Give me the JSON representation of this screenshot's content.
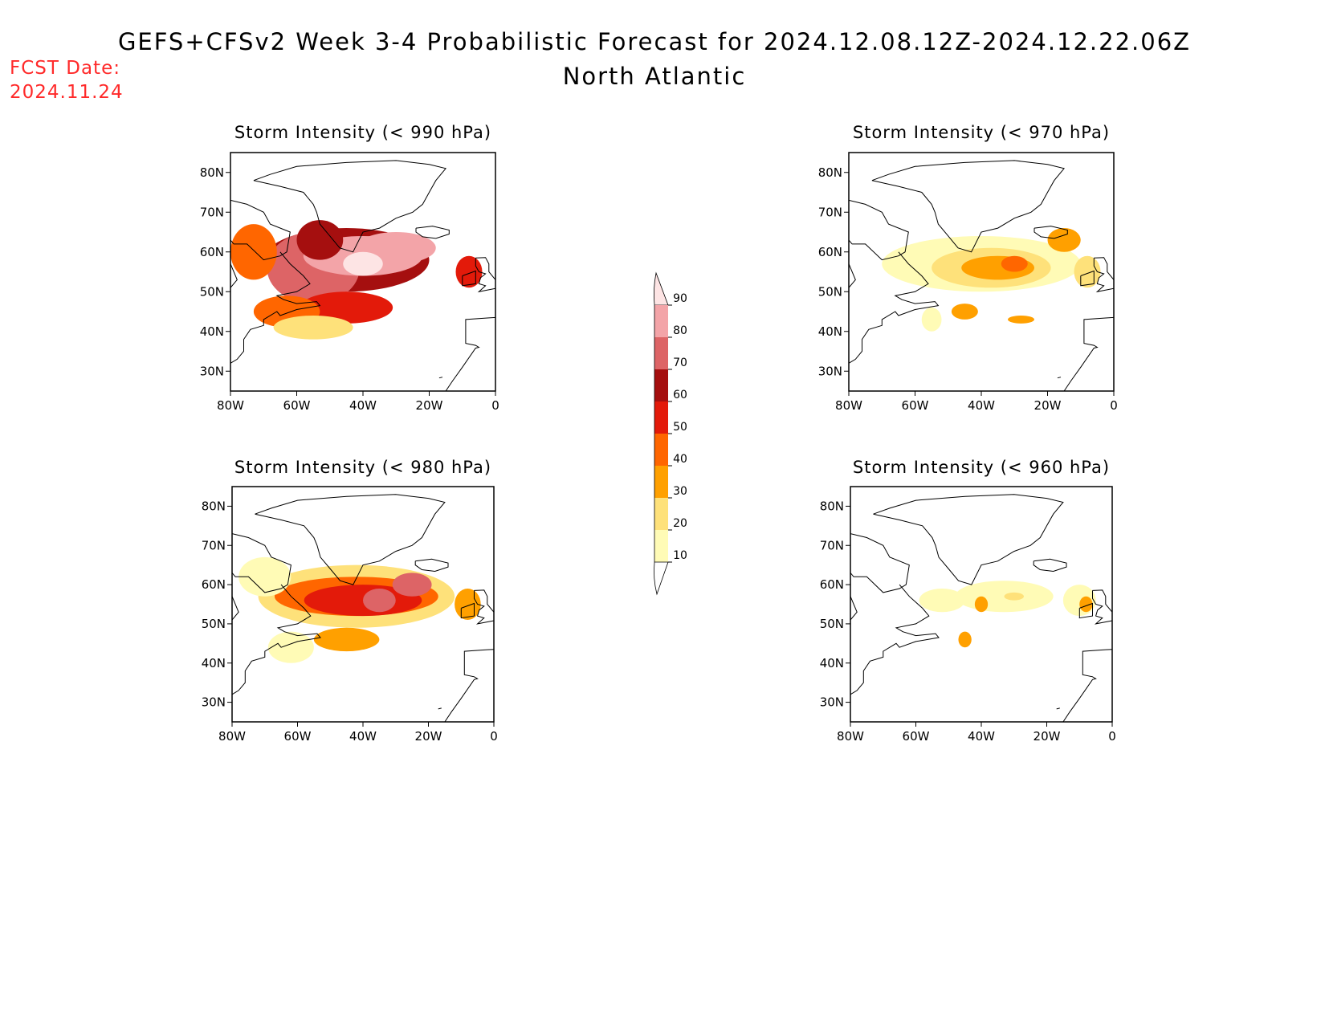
{
  "header": {
    "title": "GEFS+CFSv2 Week 3-4 Probabilistic Forecast for 2024.12.08.12Z-2024.12.22.06Z",
    "subtitle": "North Atlantic",
    "fcst_label": "FCST Date:",
    "fcst_date": "2024.11.24"
  },
  "axes": {
    "lat_labels": [
      "80N",
      "70N",
      "60N",
      "50N",
      "40N",
      "30N"
    ],
    "lat_values": [
      80,
      70,
      60,
      50,
      40,
      30
    ],
    "lon_labels": [
      "80W",
      "60W",
      "40W",
      "20W",
      "0"
    ],
    "lon_values": [
      -80,
      -60,
      -40,
      -20,
      0
    ],
    "lat_range": [
      25,
      85
    ],
    "lon_range": [
      -80,
      0
    ]
  },
  "colorbar": {
    "levels": [
      "90",
      "80",
      "70",
      "60",
      "50",
      "40",
      "30",
      "20",
      "10"
    ],
    "colors": [
      "#fde4e4",
      "#f3a4a8",
      "#dd6466",
      "#a50f0f",
      "#e31a0a",
      "#ff6600",
      "#ffa000",
      "#fee17a",
      "#fffbb6"
    ]
  },
  "panels": [
    {
      "id": "p990",
      "title": "Storm Intensity (< 990 hPa)",
      "blobs": [
        {
          "lon": -45,
          "lat": 58,
          "rx": 25,
          "ry": 8,
          "level": 5
        },
        {
          "lon": -55,
          "lat": 56,
          "rx": 14,
          "ry": 9,
          "level": 6
        },
        {
          "lon": -45,
          "lat": 46,
          "rx": 14,
          "ry": 4,
          "level": 4
        },
        {
          "lon": -63,
          "lat": 45,
          "rx": 10,
          "ry": 4,
          "level": 3
        },
        {
          "lon": -73,
          "lat": 60,
          "rx": 7,
          "ry": 7,
          "level": 3
        },
        {
          "lon": -40,
          "lat": 59,
          "rx": 18,
          "ry": 5,
          "level": 7
        },
        {
          "lon": -30,
          "lat": 61,
          "rx": 12,
          "ry": 4,
          "level": 7
        },
        {
          "lon": -53,
          "lat": 63,
          "rx": 7,
          "ry": 5,
          "level": 5
        },
        {
          "lon": -40,
          "lat": 57,
          "rx": 6,
          "ry": 3,
          "level": 8
        },
        {
          "lon": -8,
          "lat": 55,
          "rx": 4,
          "ry": 4,
          "level": 4
        },
        {
          "lon": -55,
          "lat": 41,
          "rx": 12,
          "ry": 3,
          "level": 1
        }
      ]
    },
    {
      "id": "p970",
      "title": "Storm Intensity (< 970 hPa)",
      "blobs": [
        {
          "lon": -40,
          "lat": 57,
          "rx": 30,
          "ry": 7,
          "level": 0
        },
        {
          "lon": -37,
          "lat": 56,
          "rx": 18,
          "ry": 5,
          "level": 1
        },
        {
          "lon": -35,
          "lat": 56,
          "rx": 11,
          "ry": 3,
          "level": 2
        },
        {
          "lon": -30,
          "lat": 57,
          "rx": 4,
          "ry": 2,
          "level": 3
        },
        {
          "lon": -45,
          "lat": 45,
          "rx": 4,
          "ry": 2,
          "level": 2
        },
        {
          "lon": -55,
          "lat": 43,
          "rx": 3,
          "ry": 3,
          "level": 0
        },
        {
          "lon": -28,
          "lat": 43,
          "rx": 4,
          "ry": 1,
          "level": 2
        },
        {
          "lon": -15,
          "lat": 63,
          "rx": 5,
          "ry": 3,
          "level": 2
        },
        {
          "lon": -8,
          "lat": 55,
          "rx": 4,
          "ry": 4,
          "level": 1
        }
      ]
    },
    {
      "id": "p980",
      "title": "Storm Intensity (< 980 hPa)",
      "blobs": [
        {
          "lon": -42,
          "lat": 57,
          "rx": 30,
          "ry": 8,
          "level": 1
        },
        {
          "lon": -42,
          "lat": 57,
          "rx": 25,
          "ry": 5,
          "level": 3
        },
        {
          "lon": -40,
          "lat": 56,
          "rx": 18,
          "ry": 4,
          "level": 4
        },
        {
          "lon": -35,
          "lat": 56,
          "rx": 5,
          "ry": 3,
          "level": 6
        },
        {
          "lon": -25,
          "lat": 60,
          "rx": 6,
          "ry": 3,
          "level": 6
        },
        {
          "lon": -45,
          "lat": 46,
          "rx": 10,
          "ry": 3,
          "level": 2
        },
        {
          "lon": -62,
          "lat": 44,
          "rx": 7,
          "ry": 4,
          "level": 0
        },
        {
          "lon": -70,
          "lat": 62,
          "rx": 8,
          "ry": 5,
          "level": 0
        },
        {
          "lon": -8,
          "lat": 55,
          "rx": 4,
          "ry": 4,
          "level": 2
        }
      ]
    },
    {
      "id": "p960",
      "title": "Storm Intensity (< 960 hPa)",
      "blobs": [
        {
          "lon": -33,
          "lat": 57,
          "rx": 15,
          "ry": 4,
          "level": 0
        },
        {
          "lon": -52,
          "lat": 56,
          "rx": 7,
          "ry": 3,
          "level": 0
        },
        {
          "lon": -10,
          "lat": 56,
          "rx": 5,
          "ry": 4,
          "level": 0
        },
        {
          "lon": -40,
          "lat": 55,
          "rx": 2,
          "ry": 2,
          "level": 2
        },
        {
          "lon": -30,
          "lat": 57,
          "rx": 3,
          "ry": 1,
          "level": 1
        },
        {
          "lon": -45,
          "lat": 46,
          "rx": 2,
          "ry": 2,
          "level": 2
        },
        {
          "lon": -8,
          "lat": 55,
          "rx": 2,
          "ry": 2,
          "level": 2
        }
      ]
    }
  ]
}
